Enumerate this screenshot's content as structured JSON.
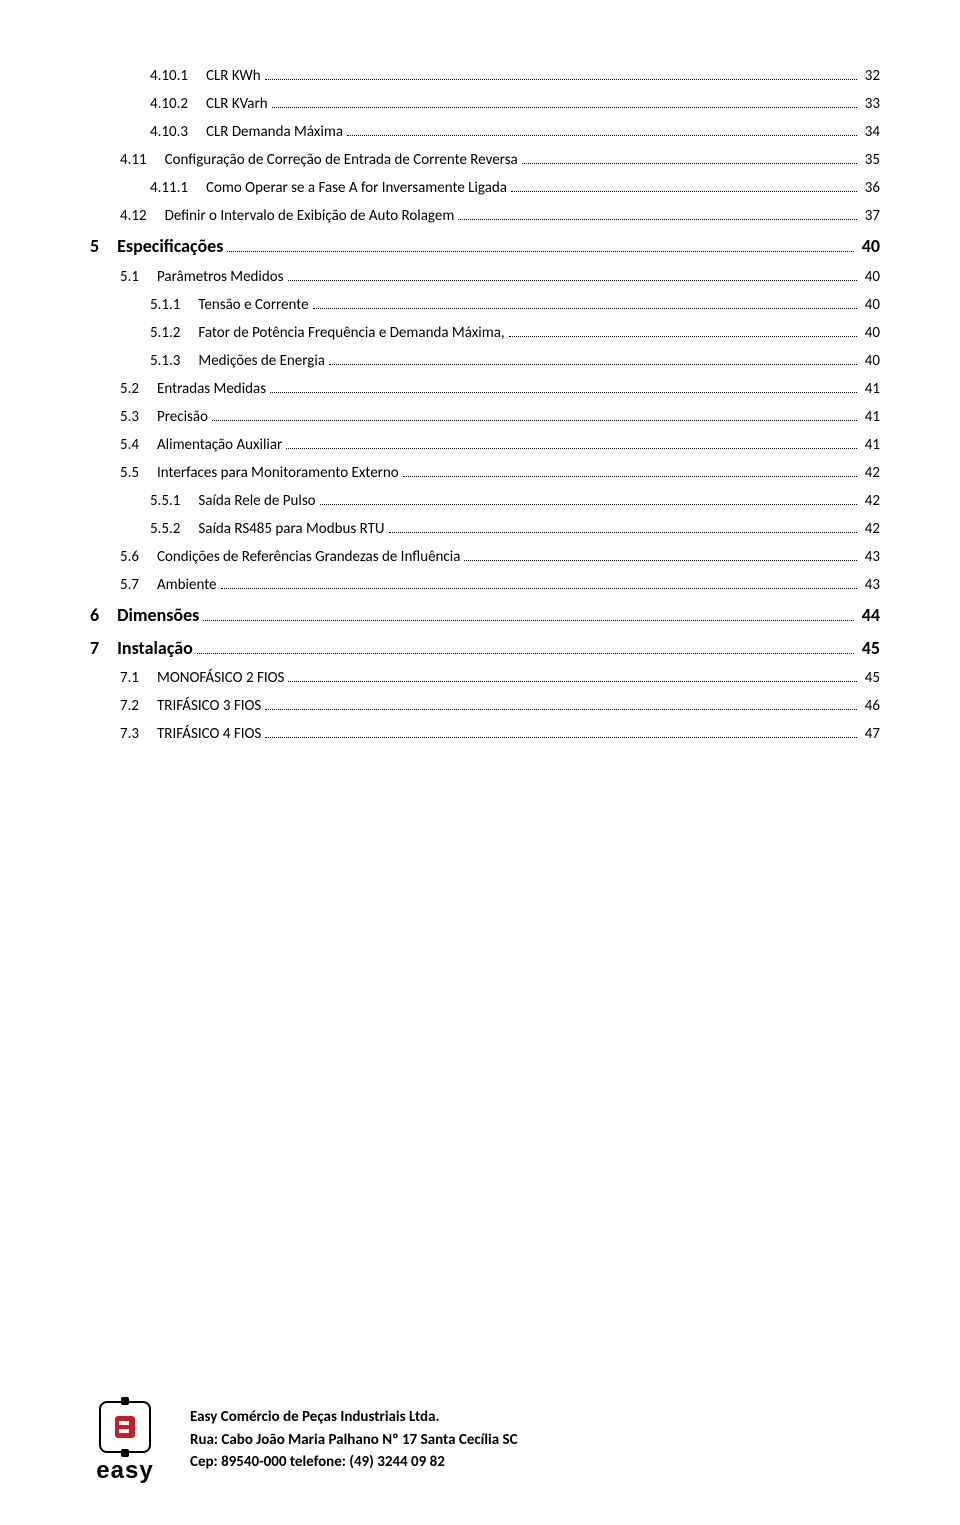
{
  "toc": [
    {
      "indent": 3,
      "num": "4.10.1",
      "text": "CLR KWh",
      "page": "32",
      "bold": false,
      "big": false
    },
    {
      "indent": 3,
      "num": "4.10.2",
      "text": "CLR KVarh",
      "page": "33",
      "bold": false,
      "big": false
    },
    {
      "indent": 3,
      "num": "4.10.3",
      "text": "CLR Demanda Máxima",
      "page": "34",
      "bold": false,
      "big": false
    },
    {
      "indent": 2,
      "num": "4.11",
      "text": "Configuração de Correção de Entrada de Corrente Reversa",
      "page": "35",
      "bold": false,
      "big": false
    },
    {
      "indent": 3,
      "num": "4.11.1",
      "text": "Como Operar se a Fase A for Inversamente Ligada",
      "page": "36",
      "bold": false,
      "big": false
    },
    {
      "indent": 2,
      "num": "4.12",
      "text": "Definir o Intervalo de Exibição de Auto Rolagem",
      "page": "37",
      "bold": false,
      "big": false
    },
    {
      "indent": 1,
      "num": "5",
      "text": "Especificações",
      "page": "40",
      "bold": true,
      "big": true
    },
    {
      "indent": 2,
      "num": "5.1",
      "text": "Parâmetros Medidos",
      "page": "40",
      "bold": false,
      "big": false
    },
    {
      "indent": 3,
      "num": "5.1.1",
      "text": "Tensão e Corrente",
      "page": "40",
      "bold": false,
      "big": false
    },
    {
      "indent": 3,
      "num": "5.1.2",
      "text": "Fator de Potência Frequência e Demanda Máxima,",
      "page": "40",
      "bold": false,
      "big": false
    },
    {
      "indent": 3,
      "num": "5.1.3",
      "text": "Medições de Energia",
      "page": "40",
      "bold": false,
      "big": false
    },
    {
      "indent": 2,
      "num": "5.2",
      "text": "Entradas Medidas",
      "page": "41",
      "bold": false,
      "big": false
    },
    {
      "indent": 2,
      "num": "5.3",
      "text": "Precisão",
      "page": "41",
      "bold": false,
      "big": false
    },
    {
      "indent": 2,
      "num": "5.4",
      "text": "Alimentação Auxiliar",
      "page": "41",
      "bold": false,
      "big": false
    },
    {
      "indent": 2,
      "num": "5.5",
      "text": "Interfaces para Monitoramento Externo",
      "page": "42",
      "bold": false,
      "big": false
    },
    {
      "indent": 3,
      "num": "5.5.1",
      "text": "Saída Rele de Pulso",
      "page": "42",
      "bold": false,
      "big": false
    },
    {
      "indent": 3,
      "num": "5.5.2",
      "text": "Saída RS485 para Modbus RTU",
      "page": "42",
      "bold": false,
      "big": false
    },
    {
      "indent": 2,
      "num": "5.6",
      "text": "Condições de Referências Grandezas de Influência",
      "page": "43",
      "bold": false,
      "big": false
    },
    {
      "indent": 2,
      "num": "5.7",
      "text": "Ambiente",
      "page": "43",
      "bold": false,
      "big": false
    },
    {
      "indent": 1,
      "num": "6",
      "text": "Dimensões",
      "page": "44",
      "bold": true,
      "big": true
    },
    {
      "indent": 1,
      "num": "7",
      "text": "Instalação",
      "page": "45",
      "bold": true,
      "big": true
    },
    {
      "indent": 2,
      "num": "7.1",
      "text": "MONOFÁSICO 2 FIOS",
      "page": "45",
      "bold": false,
      "big": false
    },
    {
      "indent": 2,
      "num": "7.2",
      "text": "TRIFÁSICO 3 FIOS",
      "page": "46",
      "bold": false,
      "big": false
    },
    {
      "indent": 2,
      "num": "7.3",
      "text": "TRIFÁSICO 4 FIOS",
      "page": "47",
      "bold": false,
      "big": false
    }
  ],
  "footer": {
    "logo_word": "easy",
    "line1": "Easy Comércio de Peças Industriais Ltda.",
    "line2": "Rua: Cabo João Maria Palhano Nº 17   Santa Cecília SC",
    "line3": "Cep: 89540-000  telefone: (49) 3244 09 82"
  }
}
